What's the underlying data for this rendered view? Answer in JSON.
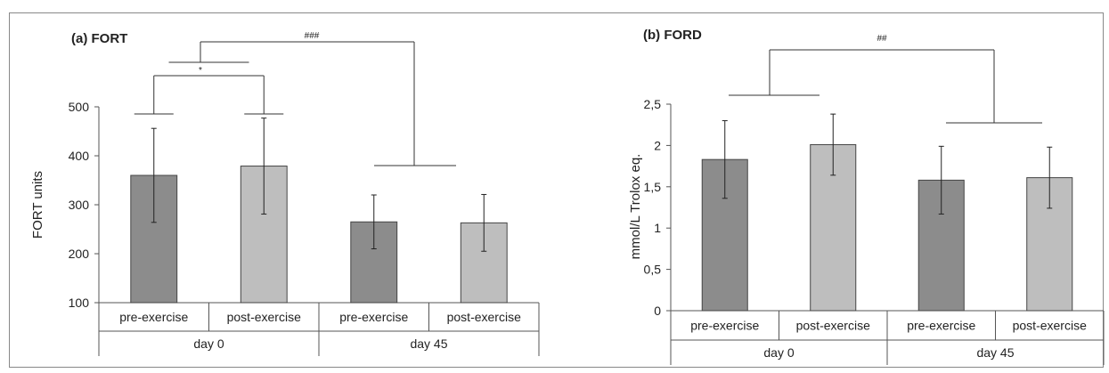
{
  "chart_data": [
    {
      "type": "bar",
      "title": "(a) FORT",
      "ylabel": "FORT units",
      "xlabel": "",
      "ylim": [
        100,
        500
      ],
      "yticks": [
        100,
        200,
        300,
        400,
        500
      ],
      "ytick_labels": [
        "100",
        "200",
        "300",
        "400",
        "500"
      ],
      "categories": [
        "pre-exercise",
        "post-exercise",
        "pre-exercise",
        "post-exercise"
      ],
      "groups": [
        "day 0",
        "day 45"
      ],
      "values": [
        360,
        379,
        265,
        263
      ],
      "errors": [
        96,
        98,
        55,
        58
      ],
      "colors": [
        "#8c8c8c",
        "#bebebe",
        "#8c8c8c",
        "#bebebe"
      ],
      "annotations": [
        "*",
        "###"
      ],
      "grid": false
    },
    {
      "type": "bar",
      "title": "(b) FORD",
      "ylabel": "mmol/L Trolox eq.",
      "xlabel": "",
      "ylim": [
        0,
        2.5
      ],
      "yticks": [
        0,
        0.5,
        1,
        1.5,
        2,
        2.5
      ],
      "ytick_labels": [
        "0",
        "0,5",
        "1",
        "1,5",
        "2",
        "2,5"
      ],
      "categories": [
        "pre-exercise",
        "post-exercise",
        "pre-exercise",
        "post-exercise"
      ],
      "groups": [
        "day 0",
        "day 45"
      ],
      "values": [
        1.83,
        2.01,
        1.58,
        1.61
      ],
      "errors": [
        0.47,
        0.37,
        0.41,
        0.37
      ],
      "colors": [
        "#8c8c8c",
        "#bebebe",
        "#8c8c8c",
        "#bebebe"
      ],
      "annotations": [
        "##"
      ],
      "grid": false
    }
  ]
}
